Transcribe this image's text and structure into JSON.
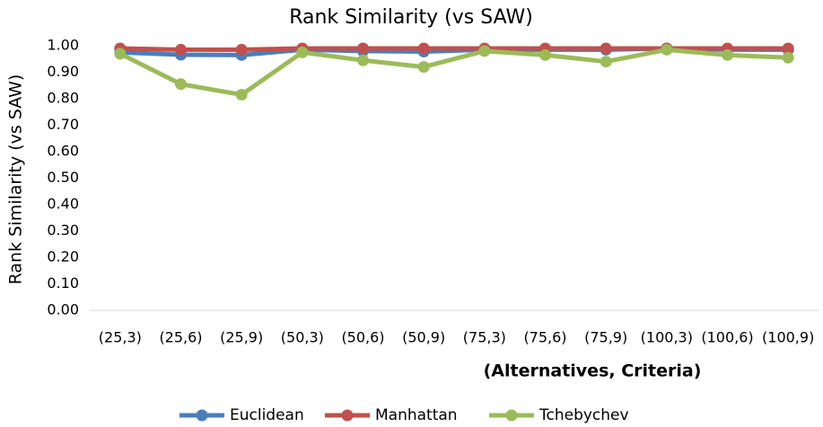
{
  "chart_data": {
    "type": "line",
    "title": "Rank Similarity (vs SAW)",
    "y_label": "Rank Similarity (vs SAW)",
    "x_label": "(Alternatives, Criteria)",
    "categories": [
      "(25,3)",
      "(25,6)",
      "(25,9)",
      "(50,3)",
      "(50,6)",
      "(50,9)",
      "(75,3)",
      "(75,6)",
      "(75,9)",
      "(100,3)",
      "(100,6)",
      "(100,9)"
    ],
    "series": [
      {
        "name": "Euclidean",
        "color": "#4a7ebb",
        "values": [
          0.975,
          0.966,
          0.965,
          0.985,
          0.98,
          0.978,
          0.985,
          0.985,
          0.985,
          0.99,
          0.985,
          0.985
        ]
      },
      {
        "name": "Manhattan",
        "color": "#c0504d",
        "values": [
          0.99,
          0.985,
          0.985,
          0.99,
          0.99,
          0.99,
          0.99,
          0.99,
          0.99,
          0.99,
          0.99,
          0.99
        ]
      },
      {
        "name": "Tchebychev",
        "color": "#9bbb59",
        "values": [
          0.97,
          0.855,
          0.815,
          0.975,
          0.945,
          0.92,
          0.98,
          0.965,
          0.94,
          0.985,
          0.965,
          0.955
        ]
      }
    ],
    "ylim": [
      0,
      1
    ],
    "yticks": [
      {
        "value": 0,
        "label": "0.00"
      },
      {
        "value": 0.1,
        "label": "0.10"
      },
      {
        "value": 0.2,
        "label": "0.20"
      },
      {
        "value": 0.3,
        "label": "0.30"
      },
      {
        "value": 0.4,
        "label": "0.40"
      },
      {
        "value": 0.5,
        "label": "0.50"
      },
      {
        "value": 0.6,
        "label": "0.60"
      },
      {
        "value": 0.7,
        "label": "0.70"
      },
      {
        "value": 0.8,
        "label": "0.80"
      },
      {
        "value": 0.9,
        "label": "0.90"
      },
      {
        "value": 1,
        "label": "1.00"
      }
    ],
    "legend": "bottom"
  }
}
